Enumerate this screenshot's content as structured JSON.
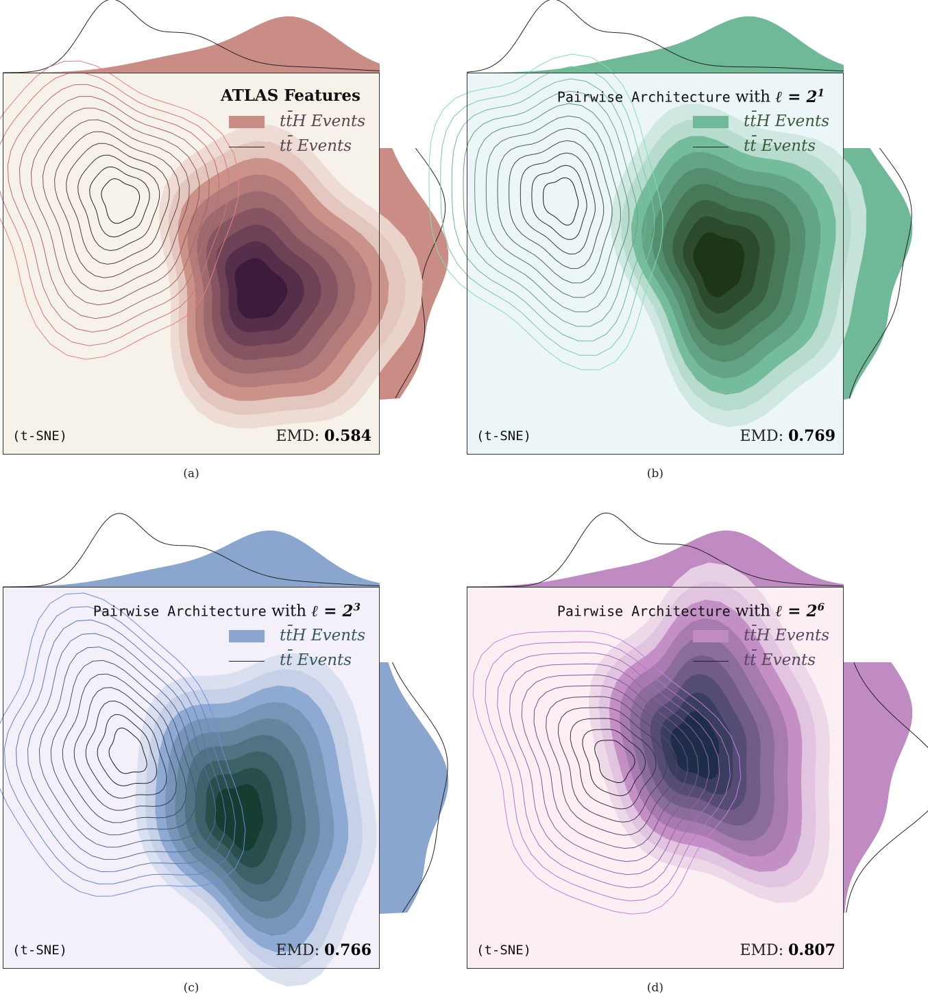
{
  "chart_data": [
    {
      "type": "density_contour",
      "panel": "(a)",
      "title_bold": "ATLAS Features",
      "legend": [
        "tt̄H Events",
        "tt̄ Events"
      ],
      "method_label": "(t-SNE)",
      "emd_label": "EMD:",
      "emd_value": "0.584",
      "colors": {
        "bg": "#f6f2ea",
        "fill": "#c98d86",
        "dark": "#3c1a3c",
        "line": "#e8807e",
        "legend_text": "#5a4450"
      },
      "tth_peak": [
        0.77,
        0.55
      ],
      "tt_peak": [
        0.28,
        0.35
      ]
    },
    {
      "type": "density_contour",
      "panel": "(b)",
      "title_mono": "Pairwise Architecture",
      "title_with": "with",
      "title_math": "ℓ = 2",
      "title_exp": "1",
      "legend": [
        "tt̄H Events",
        "tt̄ Events"
      ],
      "method_label": "(t-SNE)",
      "emd_label": "EMD:",
      "emd_value": "0.769",
      "colors": {
        "bg": "#ecf5f7",
        "fill": "#6fb898",
        "dark": "#1c3414",
        "line": "#7fe0b0",
        "legend_text": "#3a5a3a"
      },
      "tth_peak": [
        0.76,
        0.48
      ],
      "tt_peak": [
        0.22,
        0.35
      ]
    },
    {
      "type": "density_contour",
      "panel": "(c)",
      "title_mono": "Pairwise Architecture",
      "title_with": "with",
      "title_math": "ℓ = 2",
      "title_exp": "3",
      "legend": [
        "tt̄H Events",
        "tt̄ Events"
      ],
      "method_label": "(t-SNE)",
      "emd_label": "EMD:",
      "emd_value": "0.766",
      "colors": {
        "bg": "#f3f0fa",
        "fill": "#8aa6cf",
        "dark": "#143c30",
        "line": "#6a8ee0",
        "legend_text": "#355a55"
      },
      "tth_peak": [
        0.72,
        0.58
      ],
      "tt_peak": [
        0.3,
        0.45
      ]
    },
    {
      "type": "density_contour",
      "panel": "(d)",
      "title_mono": "Pairwise Architecture",
      "title_with": "with",
      "title_math": "ℓ = 2",
      "title_exp": "6",
      "legend": [
        "tt̄H Events",
        "tt̄ Events"
      ],
      "method_label": "(t-SNE)",
      "emd_label": "EMD:",
      "emd_value": "0.807",
      "colors": {
        "bg": "#fbeff3",
        "fill": "#c08ac2",
        "dark": "#1c2c48",
        "line": "#c77fe8",
        "legend_text": "#5a4460"
      },
      "tth_peak": [
        0.7,
        0.4
      ],
      "tt_peak": [
        0.36,
        0.47
      ]
    }
  ]
}
